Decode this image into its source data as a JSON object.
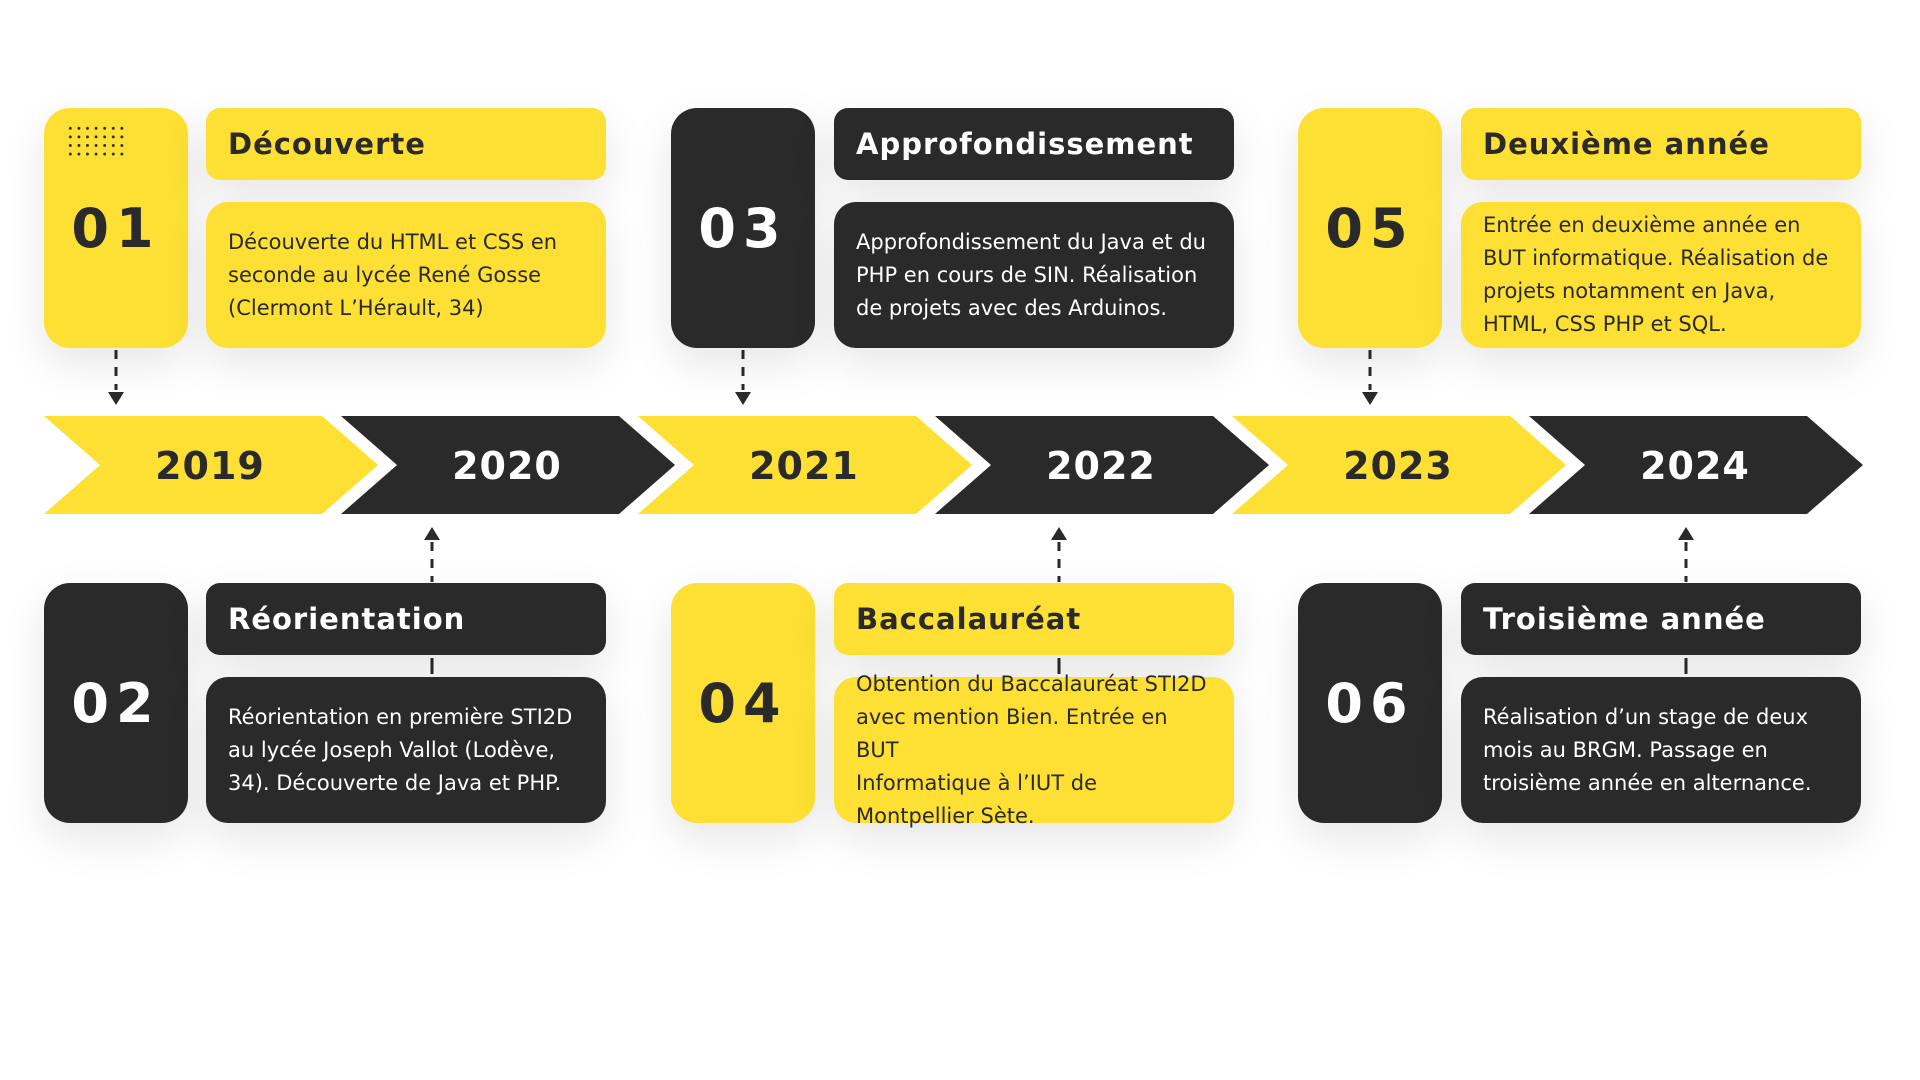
{
  "colors": {
    "accent": "#fde033",
    "dark": "#2a2a2a",
    "background": "#ffffff"
  },
  "years": [
    "2019",
    "2020",
    "2021",
    "2022",
    "2023",
    "2024"
  ],
  "steps": [
    {
      "number": "01",
      "title": "Découverte",
      "lines": [
        "Découverte du HTML et CSS en",
        "seconde au lycée René Gosse",
        "(Clermont L’Hérault, 34)"
      ]
    },
    {
      "number": "02",
      "title": "Réorientation",
      "lines": [
        "Réorientation en première STI2D",
        "au lycée Joseph Vallot (Lodève,",
        "34). Découverte de Java et PHP."
      ]
    },
    {
      "number": "03",
      "title": "Approfondissement",
      "lines": [
        "Approfondissement du Java et du",
        "PHP en cours de SIN. Réalisation",
        "de projets avec des Arduinos."
      ]
    },
    {
      "number": "04",
      "title": "Baccalauréat",
      "lines": [
        "Obtention du Baccalauréat STI2D",
        "avec mention Bien. Entrée en BUT",
        "Informatique à l’IUT de",
        "Montpellier Sète."
      ]
    },
    {
      "number": "05",
      "title": "Deuxième année",
      "lines": [
        "Entrée en deuxième année en",
        "BUT informatique. Réalisation de",
        "projets notamment en Java,",
        "HTML, CSS PHP et SQL."
      ]
    },
    {
      "number": "06",
      "title": "Troisième année",
      "lines": [
        "Réalisation d’un stage de deux",
        "mois au BRGM. Passage en",
        "troisième année en alternance."
      ]
    }
  ]
}
